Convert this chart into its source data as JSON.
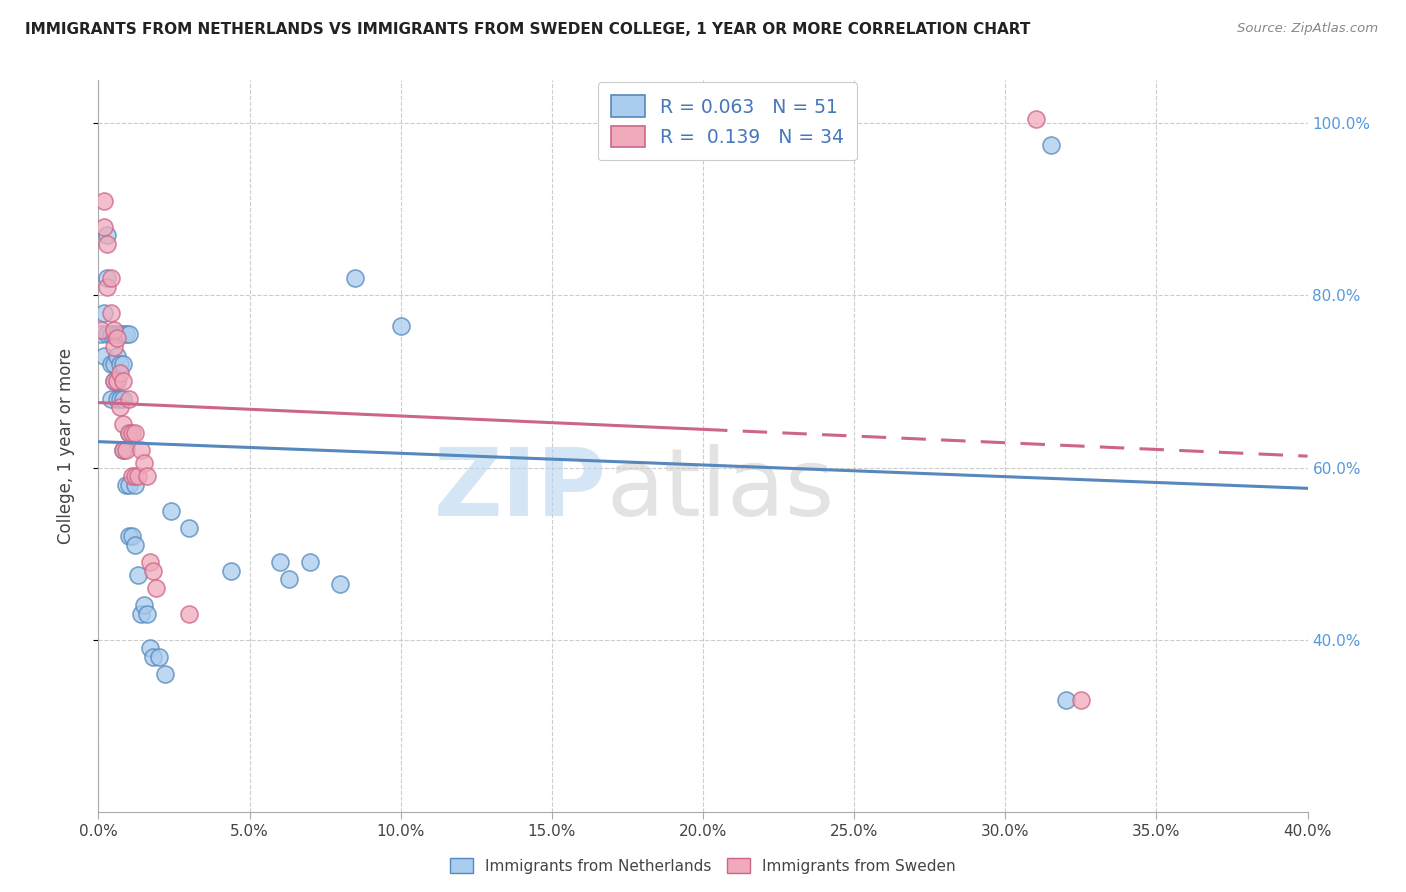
{
  "title": "IMMIGRANTS FROM NETHERLANDS VS IMMIGRANTS FROM SWEDEN COLLEGE, 1 YEAR OR MORE CORRELATION CHART",
  "source": "Source: ZipAtlas.com",
  "ylabel": "College, 1 year or more",
  "legend_label1": "Immigrants from Netherlands",
  "legend_label2": "Immigrants from Sweden",
  "r1": 0.063,
  "n1": 51,
  "r2": 0.139,
  "n2": 34,
  "xlim": [
    0.0,
    0.4
  ],
  "ylim": [
    0.2,
    1.05
  ],
  "xticks": [
    0.0,
    0.05,
    0.1,
    0.15,
    0.2,
    0.25,
    0.3,
    0.35,
    0.4
  ],
  "yticks": [
    0.4,
    0.6,
    0.8,
    1.0
  ],
  "color_blue": "#aaccee",
  "color_pink": "#f0aabc",
  "line_blue": "#5588bb",
  "line_pink": "#cc6688",
  "watermark_zip": "ZIP",
  "watermark_atlas": "atlas",
  "blue_points": [
    [
      0.001,
      0.755
    ],
    [
      0.002,
      0.73
    ],
    [
      0.002,
      0.78
    ],
    [
      0.003,
      0.82
    ],
    [
      0.003,
      0.87
    ],
    [
      0.003,
      0.755
    ],
    [
      0.004,
      0.72
    ],
    [
      0.004,
      0.68
    ],
    [
      0.004,
      0.755
    ],
    [
      0.005,
      0.72
    ],
    [
      0.005,
      0.7
    ],
    [
      0.005,
      0.755
    ],
    [
      0.006,
      0.73
    ],
    [
      0.006,
      0.7
    ],
    [
      0.006,
      0.68
    ],
    [
      0.006,
      0.755
    ],
    [
      0.007,
      0.72
    ],
    [
      0.007,
      0.68
    ],
    [
      0.007,
      0.755
    ],
    [
      0.008,
      0.72
    ],
    [
      0.008,
      0.68
    ],
    [
      0.008,
      0.62
    ],
    [
      0.008,
      0.755
    ],
    [
      0.009,
      0.58
    ],
    [
      0.009,
      0.755
    ],
    [
      0.01,
      0.64
    ],
    [
      0.01,
      0.58
    ],
    [
      0.01,
      0.52
    ],
    [
      0.01,
      0.755
    ],
    [
      0.011,
      0.52
    ],
    [
      0.012,
      0.58
    ],
    [
      0.012,
      0.51
    ],
    [
      0.013,
      0.475
    ],
    [
      0.014,
      0.43
    ],
    [
      0.015,
      0.44
    ],
    [
      0.016,
      0.43
    ],
    [
      0.017,
      0.39
    ],
    [
      0.018,
      0.38
    ],
    [
      0.02,
      0.38
    ],
    [
      0.022,
      0.36
    ],
    [
      0.024,
      0.55
    ],
    [
      0.03,
      0.53
    ],
    [
      0.044,
      0.48
    ],
    [
      0.06,
      0.49
    ],
    [
      0.063,
      0.47
    ],
    [
      0.07,
      0.49
    ],
    [
      0.08,
      0.465
    ],
    [
      0.085,
      0.82
    ],
    [
      0.1,
      0.765
    ],
    [
      0.315,
      0.975
    ],
    [
      0.32,
      0.33
    ]
  ],
  "pink_points": [
    [
      0.001,
      0.76
    ],
    [
      0.002,
      0.91
    ],
    [
      0.002,
      0.88
    ],
    [
      0.003,
      0.86
    ],
    [
      0.003,
      0.81
    ],
    [
      0.004,
      0.82
    ],
    [
      0.004,
      0.78
    ],
    [
      0.005,
      0.76
    ],
    [
      0.005,
      0.74
    ],
    [
      0.005,
      0.7
    ],
    [
      0.006,
      0.75
    ],
    [
      0.006,
      0.7
    ],
    [
      0.007,
      0.71
    ],
    [
      0.007,
      0.67
    ],
    [
      0.008,
      0.7
    ],
    [
      0.008,
      0.65
    ],
    [
      0.008,
      0.62
    ],
    [
      0.009,
      0.62
    ],
    [
      0.01,
      0.68
    ],
    [
      0.01,
      0.64
    ],
    [
      0.011,
      0.64
    ],
    [
      0.011,
      0.59
    ],
    [
      0.012,
      0.64
    ],
    [
      0.012,
      0.59
    ],
    [
      0.013,
      0.59
    ],
    [
      0.014,
      0.62
    ],
    [
      0.015,
      0.605
    ],
    [
      0.016,
      0.59
    ],
    [
      0.017,
      0.49
    ],
    [
      0.018,
      0.48
    ],
    [
      0.019,
      0.46
    ],
    [
      0.03,
      0.43
    ],
    [
      0.31,
      1.005
    ],
    [
      0.325,
      0.33
    ]
  ],
  "blue_trend": [
    0.625,
    0.73
  ],
  "pink_trend_solid": [
    0.645,
    0.78
  ],
  "pink_trend_dashed": [
    0.78,
    0.88
  ],
  "pink_solid_xrange": [
    0.0,
    0.18
  ],
  "pink_dashed_xrange": [
    0.18,
    0.4
  ]
}
